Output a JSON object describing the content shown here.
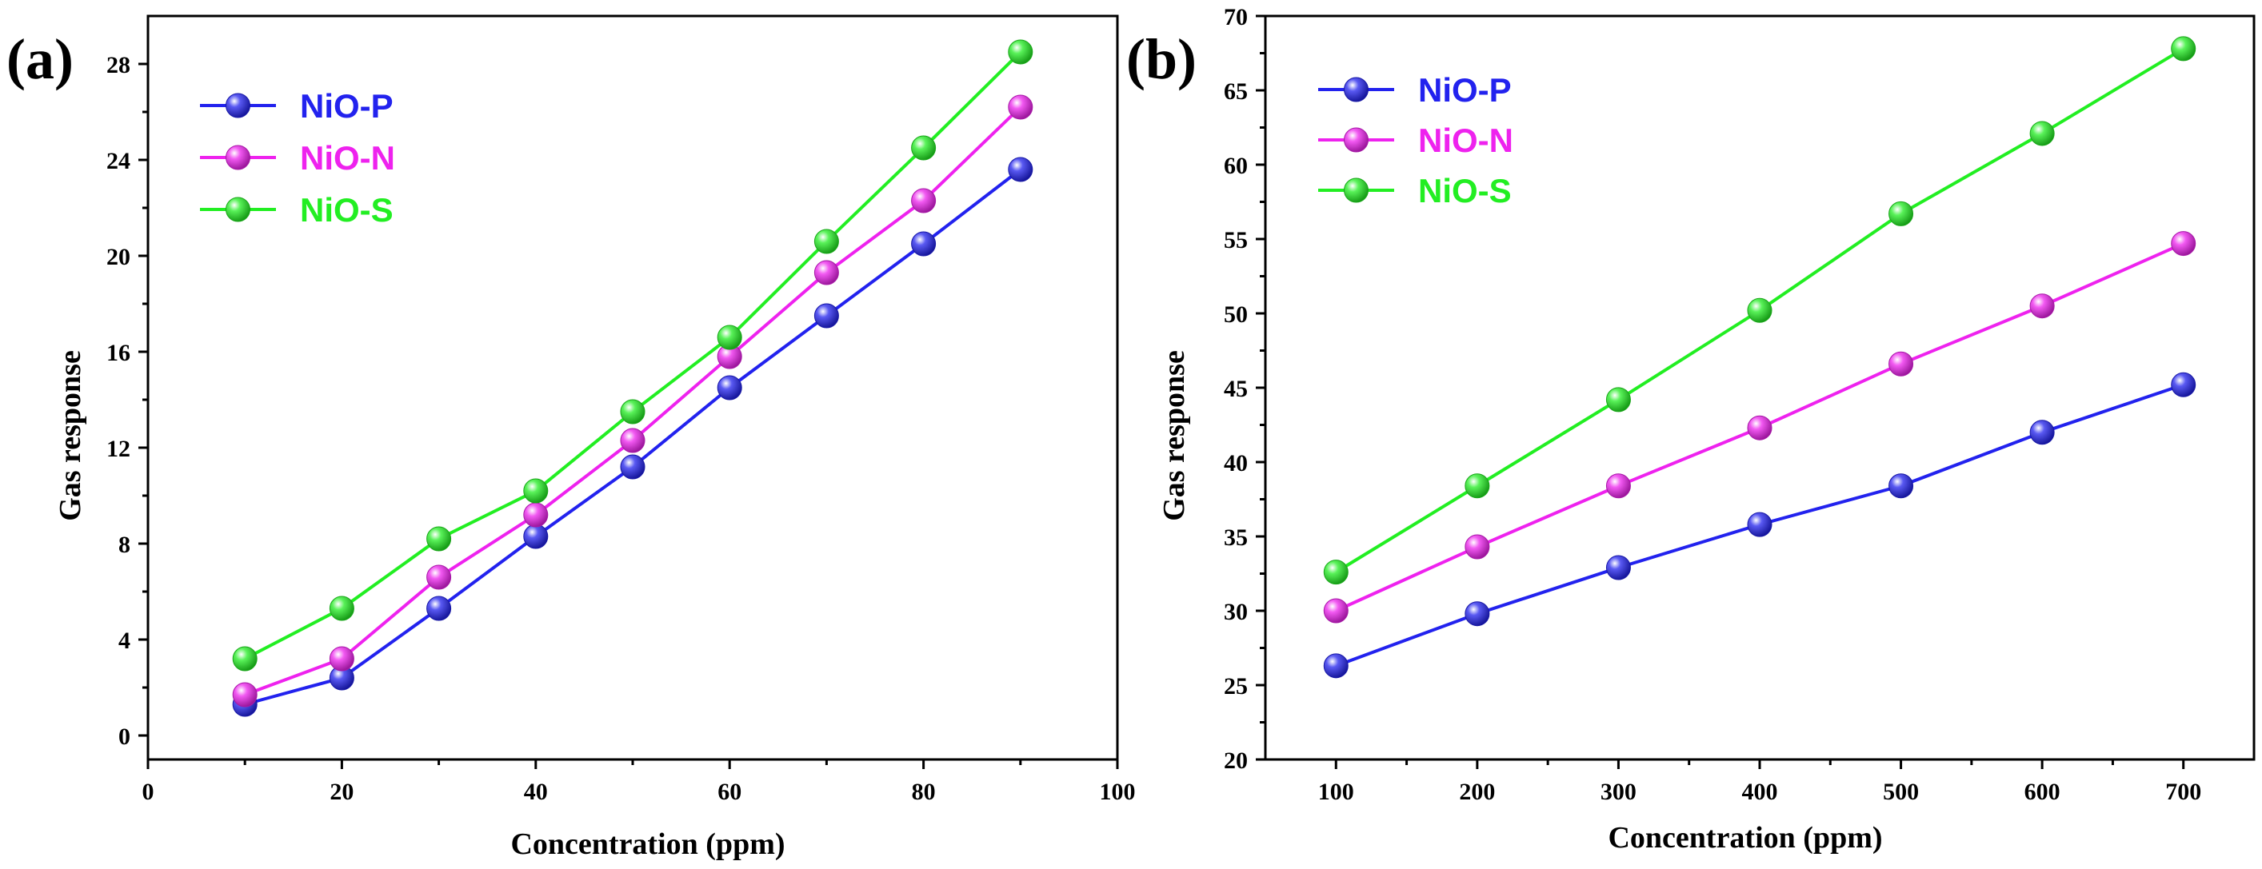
{
  "chart_data": [
    {
      "panel_label": "(a)",
      "type": "line",
      "xlabel": "Concentration (ppm)",
      "ylabel": "Gas response",
      "xlim": [
        0,
        100
      ],
      "ylim": [
        -1,
        30
      ],
      "xticks": [
        0,
        20,
        40,
        60,
        80,
        100
      ],
      "yticks": [
        0,
        4,
        8,
        12,
        16,
        20,
        24,
        28
      ],
      "x": [
        10,
        20,
        30,
        40,
        50,
        60,
        70,
        80,
        90
      ],
      "legend_position": "top-left",
      "series": [
        {
          "name": "NiO-P",
          "color": "#2222ee",
          "values": [
            1.3,
            2.4,
            5.3,
            8.3,
            11.2,
            14.5,
            17.5,
            20.5,
            23.6
          ]
        },
        {
          "name": "NiO-N",
          "color": "#ee22ee",
          "values": [
            1.7,
            3.2,
            6.6,
            9.2,
            12.3,
            15.8,
            19.3,
            22.3,
            26.2
          ]
        },
        {
          "name": "NiO-S",
          "color": "#22ee22",
          "values": [
            3.2,
            5.3,
            8.2,
            10.2,
            13.5,
            16.6,
            20.6,
            24.5,
            28.5
          ]
        }
      ]
    },
    {
      "panel_label": "(b)",
      "type": "line",
      "xlabel": "Concentration (ppm)",
      "ylabel": "Gas response",
      "xlim": [
        50,
        750
      ],
      "ylim": [
        20,
        70
      ],
      "xticks": [
        100,
        200,
        300,
        400,
        500,
        600,
        700
      ],
      "yticks": [
        20,
        25,
        30,
        35,
        40,
        45,
        50,
        55,
        60,
        65,
        70
      ],
      "x": [
        100,
        200,
        300,
        400,
        500,
        600,
        700
      ],
      "legend_position": "top-left",
      "series": [
        {
          "name": "NiO-P",
          "color": "#2222ee",
          "values": [
            26.3,
            29.8,
            32.9,
            35.8,
            38.4,
            42.0,
            45.2
          ]
        },
        {
          "name": "NiO-N",
          "color": "#ee22ee",
          "values": [
            30.0,
            34.3,
            38.4,
            42.3,
            46.6,
            50.5,
            54.7
          ]
        },
        {
          "name": "NiO-S",
          "color": "#22ee22",
          "values": [
            32.6,
            38.4,
            44.2,
            50.2,
            56.7,
            62.1,
            67.8
          ]
        }
      ]
    }
  ]
}
